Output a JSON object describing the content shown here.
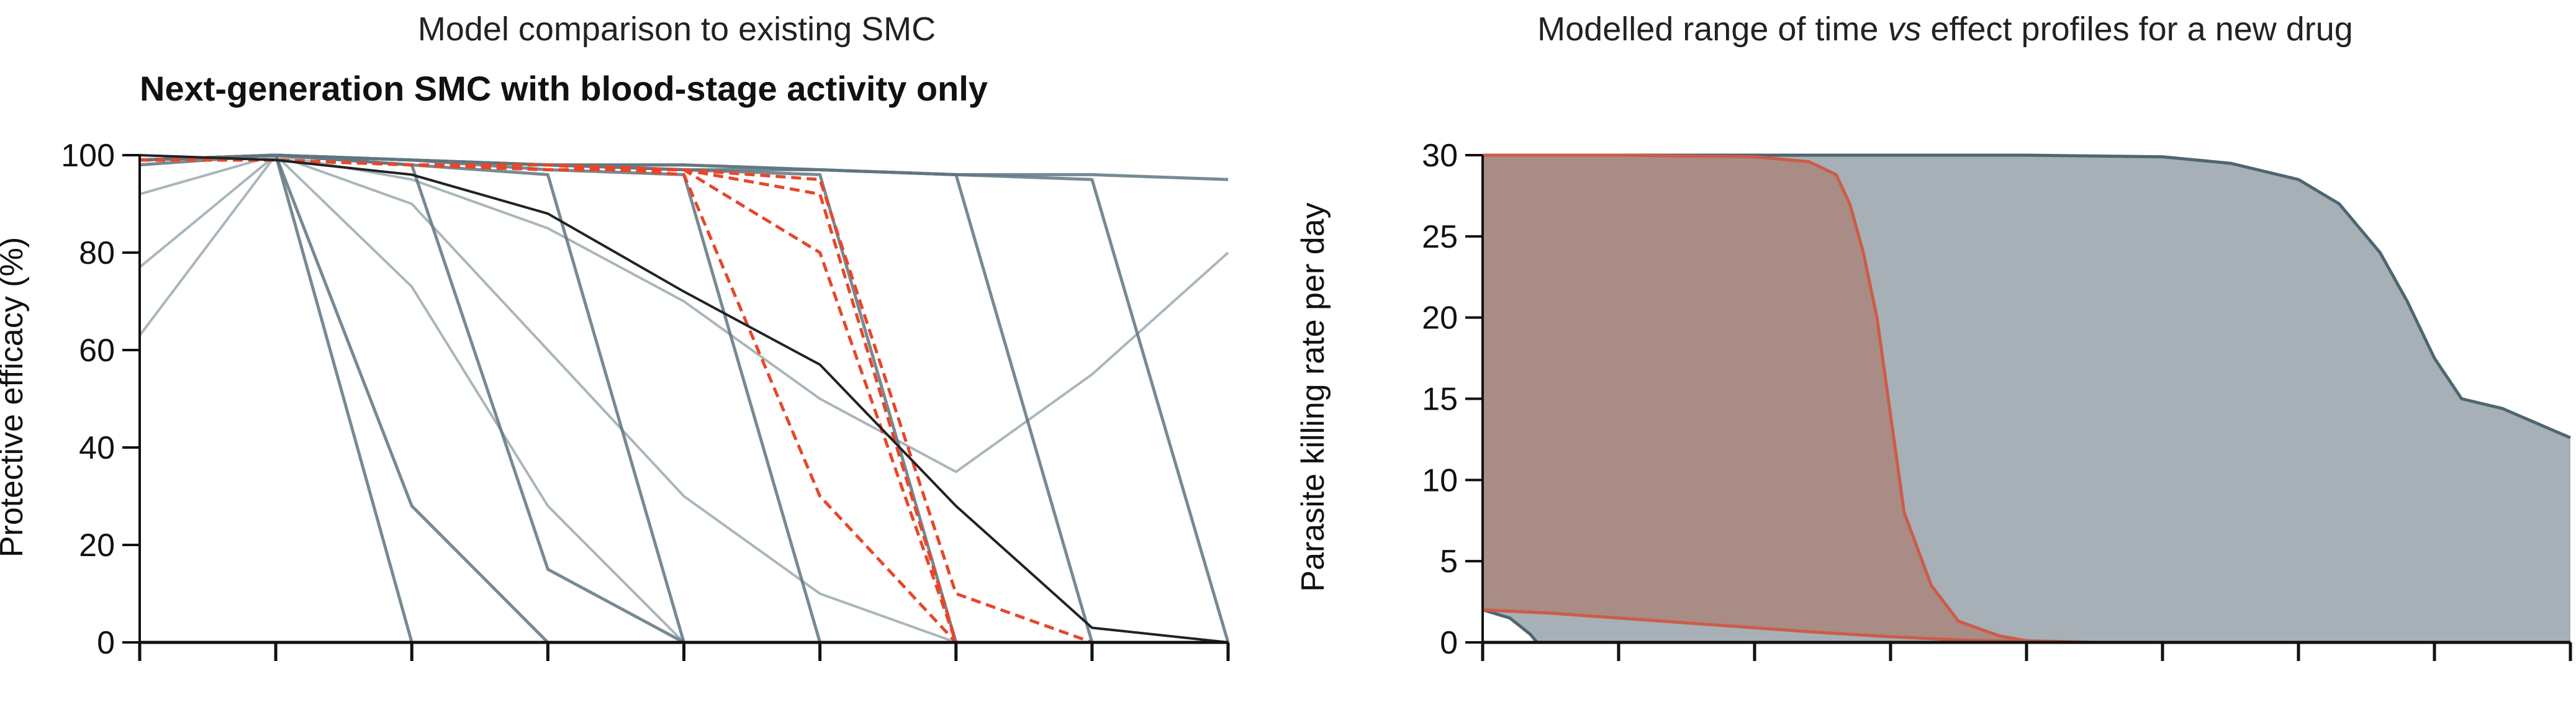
{
  "chart_data": [
    {
      "type": "line",
      "title": "Model comparison to existing SMC",
      "subtitle": "Next-generation SMC with blood-stage activity only",
      "xlabel": "",
      "ylabel": "Protective efficacy (%)",
      "ylim": [
        0,
        100
      ],
      "yticks": [
        0,
        20,
        40,
        60,
        80,
        100
      ],
      "x_ticks": [
        0,
        1,
        2,
        3,
        4,
        5,
        6,
        7,
        8
      ],
      "colors": {
        "grey": "#5f7580",
        "grey_light": "#a9b6bc",
        "red": "#e8462a",
        "black": "#222222"
      },
      "series": [
        {
          "name": "existing-smc",
          "style": "solid-black",
          "x": [
            0,
            1,
            2,
            3,
            4,
            5,
            6,
            7,
            8
          ],
          "values": [
            100,
            99,
            96,
            88,
            72,
            57,
            28,
            3,
            0
          ]
        },
        {
          "name": "next-gen-grey-steep-a",
          "style": "grey",
          "x": [
            0,
            1,
            2,
            3,
            4,
            5,
            6,
            7,
            8
          ],
          "values": [
            99,
            100,
            0,
            0,
            0,
            0,
            0,
            0,
            0
          ]
        },
        {
          "name": "next-gen-grey-steep-b",
          "style": "grey",
          "x": [
            0,
            1,
            2,
            3,
            4,
            5,
            6,
            7,
            8
          ],
          "values": [
            98,
            100,
            28,
            0,
            0,
            0,
            0,
            0,
            0
          ]
        },
        {
          "name": "next-gen-grey-c",
          "style": "grey",
          "x": [
            0,
            1,
            2,
            3,
            4,
            5,
            6,
            7,
            8
          ],
          "values": [
            99,
            100,
            98,
            15,
            0,
            0,
            0,
            0,
            0
          ]
        },
        {
          "name": "next-gen-grey-d",
          "style": "grey",
          "x": [
            0,
            1,
            2,
            3,
            4,
            5,
            6,
            7,
            8
          ],
          "values": [
            99,
            100,
            98,
            96,
            0,
            0,
            0,
            0,
            0
          ]
        },
        {
          "name": "next-gen-grey-e",
          "style": "grey",
          "x": [
            0,
            1,
            2,
            3,
            4,
            5,
            6,
            7,
            8
          ],
          "values": [
            99,
            100,
            99,
            97,
            96,
            0,
            0,
            0,
            0
          ]
        },
        {
          "name": "next-gen-grey-f",
          "style": "grey",
          "x": [
            0,
            1,
            2,
            3,
            4,
            5,
            6,
            7,
            8
          ],
          "values": [
            99,
            100,
            99,
            98,
            97,
            96,
            0,
            0,
            0
          ]
        },
        {
          "name": "next-gen-grey-g",
          "style": "grey",
          "x": [
            0,
            1,
            2,
            3,
            4,
            5,
            6,
            7,
            8
          ],
          "values": [
            99,
            100,
            99,
            98,
            97,
            97,
            96,
            0,
            0
          ]
        },
        {
          "name": "next-gen-grey-h",
          "style": "grey",
          "x": [
            0,
            1,
            2,
            3,
            4,
            5,
            6,
            7,
            8
          ],
          "values": [
            99,
            100,
            99,
            98,
            98,
            97,
            96,
            95,
            0
          ]
        },
        {
          "name": "next-gen-grey-top",
          "style": "grey",
          "x": [
            0,
            1,
            2,
            3,
            4,
            5,
            6,
            7,
            8
          ],
          "values": [
            99,
            100,
            99,
            98,
            98,
            97,
            96,
            96,
            95
          ]
        },
        {
          "name": "next-gen-grey-light-low",
          "style": "grey-light",
          "x": [
            0,
            1,
            2,
            3,
            4,
            5,
            6,
            7,
            8
          ],
          "values": [
            63,
            100,
            73,
            28,
            0,
            0,
            0,
            0,
            0
          ]
        },
        {
          "name": "next-gen-grey-light-mid",
          "style": "grey-light",
          "x": [
            0,
            1,
            2,
            3,
            4,
            5,
            6,
            7,
            8
          ],
          "values": [
            77,
            100,
            90,
            60,
            30,
            10,
            0,
            0,
            0
          ]
        },
        {
          "name": "next-gen-grey-light-high",
          "style": "grey-light",
          "x": [
            0,
            1,
            2,
            3,
            4,
            5,
            6,
            7,
            8
          ],
          "values": [
            92,
            100,
            95,
            85,
            70,
            50,
            35,
            55,
            80
          ]
        },
        {
          "name": "next-gen-red-a",
          "style": "dashed-red",
          "x": [
            0,
            1,
            2,
            3,
            4,
            5,
            6,
            7,
            8
          ],
          "values": [
            99,
            99,
            98,
            97,
            97,
            92,
            0,
            0,
            0
          ]
        },
        {
          "name": "next-gen-red-b",
          "style": "dashed-red",
          "x": [
            0,
            1,
            2,
            3,
            4,
            5,
            6,
            7,
            8
          ],
          "values": [
            99,
            99,
            98,
            97,
            97,
            95,
            10,
            0,
            0
          ]
        },
        {
          "name": "next-gen-red-c",
          "style": "dashed-red",
          "x": [
            0,
            1,
            2,
            3,
            4,
            5,
            6,
            7,
            8
          ],
          "values": [
            99,
            99,
            98,
            98,
            97,
            80,
            0,
            0,
            0
          ]
        },
        {
          "name": "next-gen-red-d",
          "style": "dashed-red",
          "x": [
            0,
            1,
            2,
            3,
            4,
            5,
            6,
            7,
            8
          ],
          "values": [
            99,
            99,
            98,
            98,
            96,
            30,
            0,
            0,
            0
          ]
        }
      ]
    },
    {
      "type": "area",
      "title": "Modelled range of time vs effect profiles for a new drug",
      "title_parts": {
        "before": "Modelled range of time ",
        "italic": "vs",
        "after": " effect profiles for a new drug"
      },
      "xlabel": "",
      "ylabel": "Parasite killing rate per day",
      "ylim": [
        0,
        30
      ],
      "yticks": [
        0,
        5,
        10,
        15,
        20,
        25,
        30
      ],
      "xlim": [
        0,
        8
      ],
      "x_ticks": [
        0,
        1,
        2,
        3,
        4,
        5,
        6,
        7,
        8
      ],
      "colors": {
        "grey_fill": "#a7b0b6",
        "grey_line": "#4e6670",
        "red_fill": "#a98c85",
        "red_line": "#cd5c48"
      },
      "series": [
        {
          "name": "grey-upper-bound",
          "style": "grey",
          "x": [
            0,
            1,
            2,
            3,
            4,
            5,
            5.5,
            6,
            6.3,
            6.6,
            6.8,
            7,
            7.2,
            7.5,
            8
          ],
          "values": [
            30,
            30,
            30,
            30,
            30,
            29.9,
            29.5,
            28.5,
            27,
            24,
            21,
            17.5,
            15,
            14.4,
            12.6
          ]
        },
        {
          "name": "grey-lower-bound",
          "style": "grey",
          "x": [
            0,
            0.2,
            0.35,
            0.4,
            8
          ],
          "values": [
            2,
            1.5,
            0.5,
            0,
            0
          ]
        },
        {
          "name": "red-upper-bound",
          "style": "red",
          "x": [
            0,
            1,
            2,
            2.4,
            2.6,
            2.7,
            2.8,
            2.9,
            3,
            3.1,
            3.3,
            3.5,
            3.8,
            4,
            4.5
          ],
          "values": [
            30,
            30,
            29.9,
            29.6,
            28.8,
            27,
            24,
            20,
            14,
            8,
            3.5,
            1.3,
            0.4,
            0.1,
            0
          ]
        },
        {
          "name": "red-lower-bound",
          "style": "red",
          "x": [
            0,
            0.5,
            1,
            1.5,
            2,
            2.5,
            3,
            3.5,
            4,
            4.5
          ],
          "values": [
            2,
            1.8,
            1.5,
            1.2,
            0.9,
            0.6,
            0.35,
            0.15,
            0.05,
            0
          ]
        }
      ]
    }
  ]
}
